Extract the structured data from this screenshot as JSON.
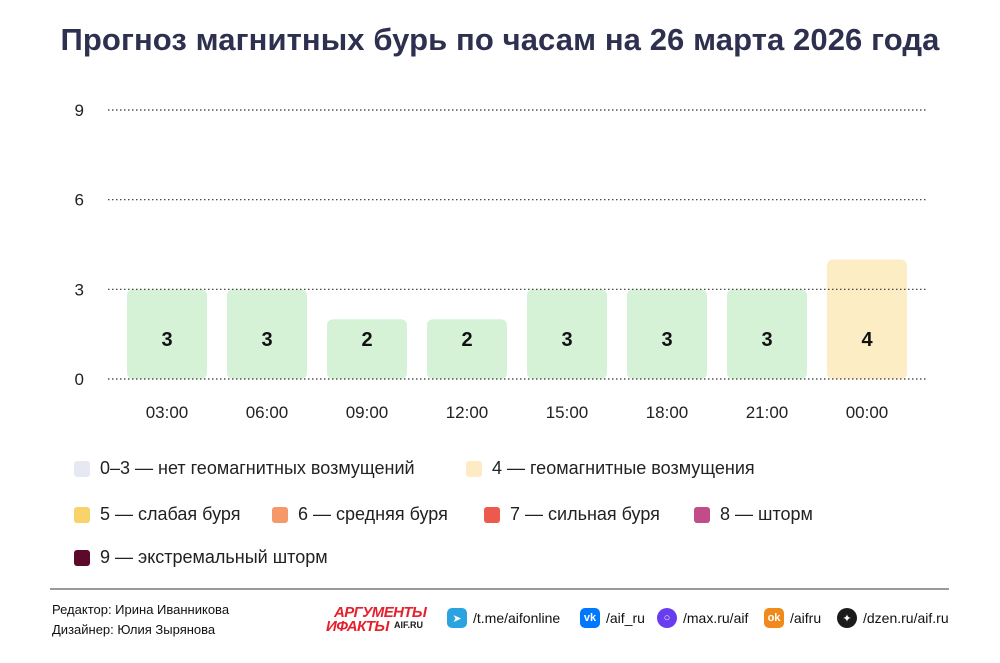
{
  "title": "Прогноз магнитных бурь по часам на 26 марта 2026 года",
  "chart_data": {
    "type": "bar",
    "categories": [
      "03:00",
      "06:00",
      "09:00",
      "12:00",
      "15:00",
      "18:00",
      "21:00",
      "00:00"
    ],
    "values": [
      3,
      3,
      2,
      2,
      3,
      3,
      3,
      4
    ],
    "ylim": [
      0,
      9
    ],
    "yticks": [
      0,
      3,
      6,
      9
    ],
    "grid": "dotted horizontal",
    "title": "Прогноз магнитных бурь по часам на 26 марта 2026 года",
    "xlabel": "",
    "ylabel": ""
  },
  "legend": [
    {
      "label": "0–3 — нет геомагнитных возмущений",
      "color": "#e6e9f2"
    },
    {
      "label": "4 — геомагнитные возмущения",
      "color": "#fdebc4"
    },
    {
      "label": "5 — слабая буря",
      "color": "#f8d36a"
    },
    {
      "label": "6 — средняя буря",
      "color": "#f5986a"
    },
    {
      "label": "7 — сильная буря",
      "color": "#ec5a4e"
    },
    {
      "label": "8 — шторм",
      "color": "#c24b8a"
    },
    {
      "label": "9 — экстремальный шторм",
      "color": "#5c0a2a"
    }
  ],
  "bar_colors": {
    "low": "#d5f2d7",
    "disturbed": "#fdedc5"
  },
  "credits": {
    "editor": "Редактор: Ирина Иванникова",
    "designer": "Дизайнер: Юлия Зырянова"
  },
  "logo": {
    "line1": "АРГУМЕНТЫ",
    "line2": "ИФАКТЫ",
    "line3": "AIF.RU"
  },
  "social": [
    {
      "icon": "telegram-icon",
      "label": "/t.me/aifonline",
      "color": "#2aa3e0"
    },
    {
      "icon": "vk-icon",
      "label": "/aif_ru",
      "color": "#0077ff"
    },
    {
      "icon": "max-icon",
      "label": "/max.ru/aif",
      "color": "#6a3cf0"
    },
    {
      "icon": "odnoklassniki-icon",
      "label": "/aifru",
      "color": "#f08a1c"
    },
    {
      "icon": "dzen-icon",
      "label": "/dzen.ru/aif.ru",
      "color": "#1b1b1b"
    }
  ]
}
